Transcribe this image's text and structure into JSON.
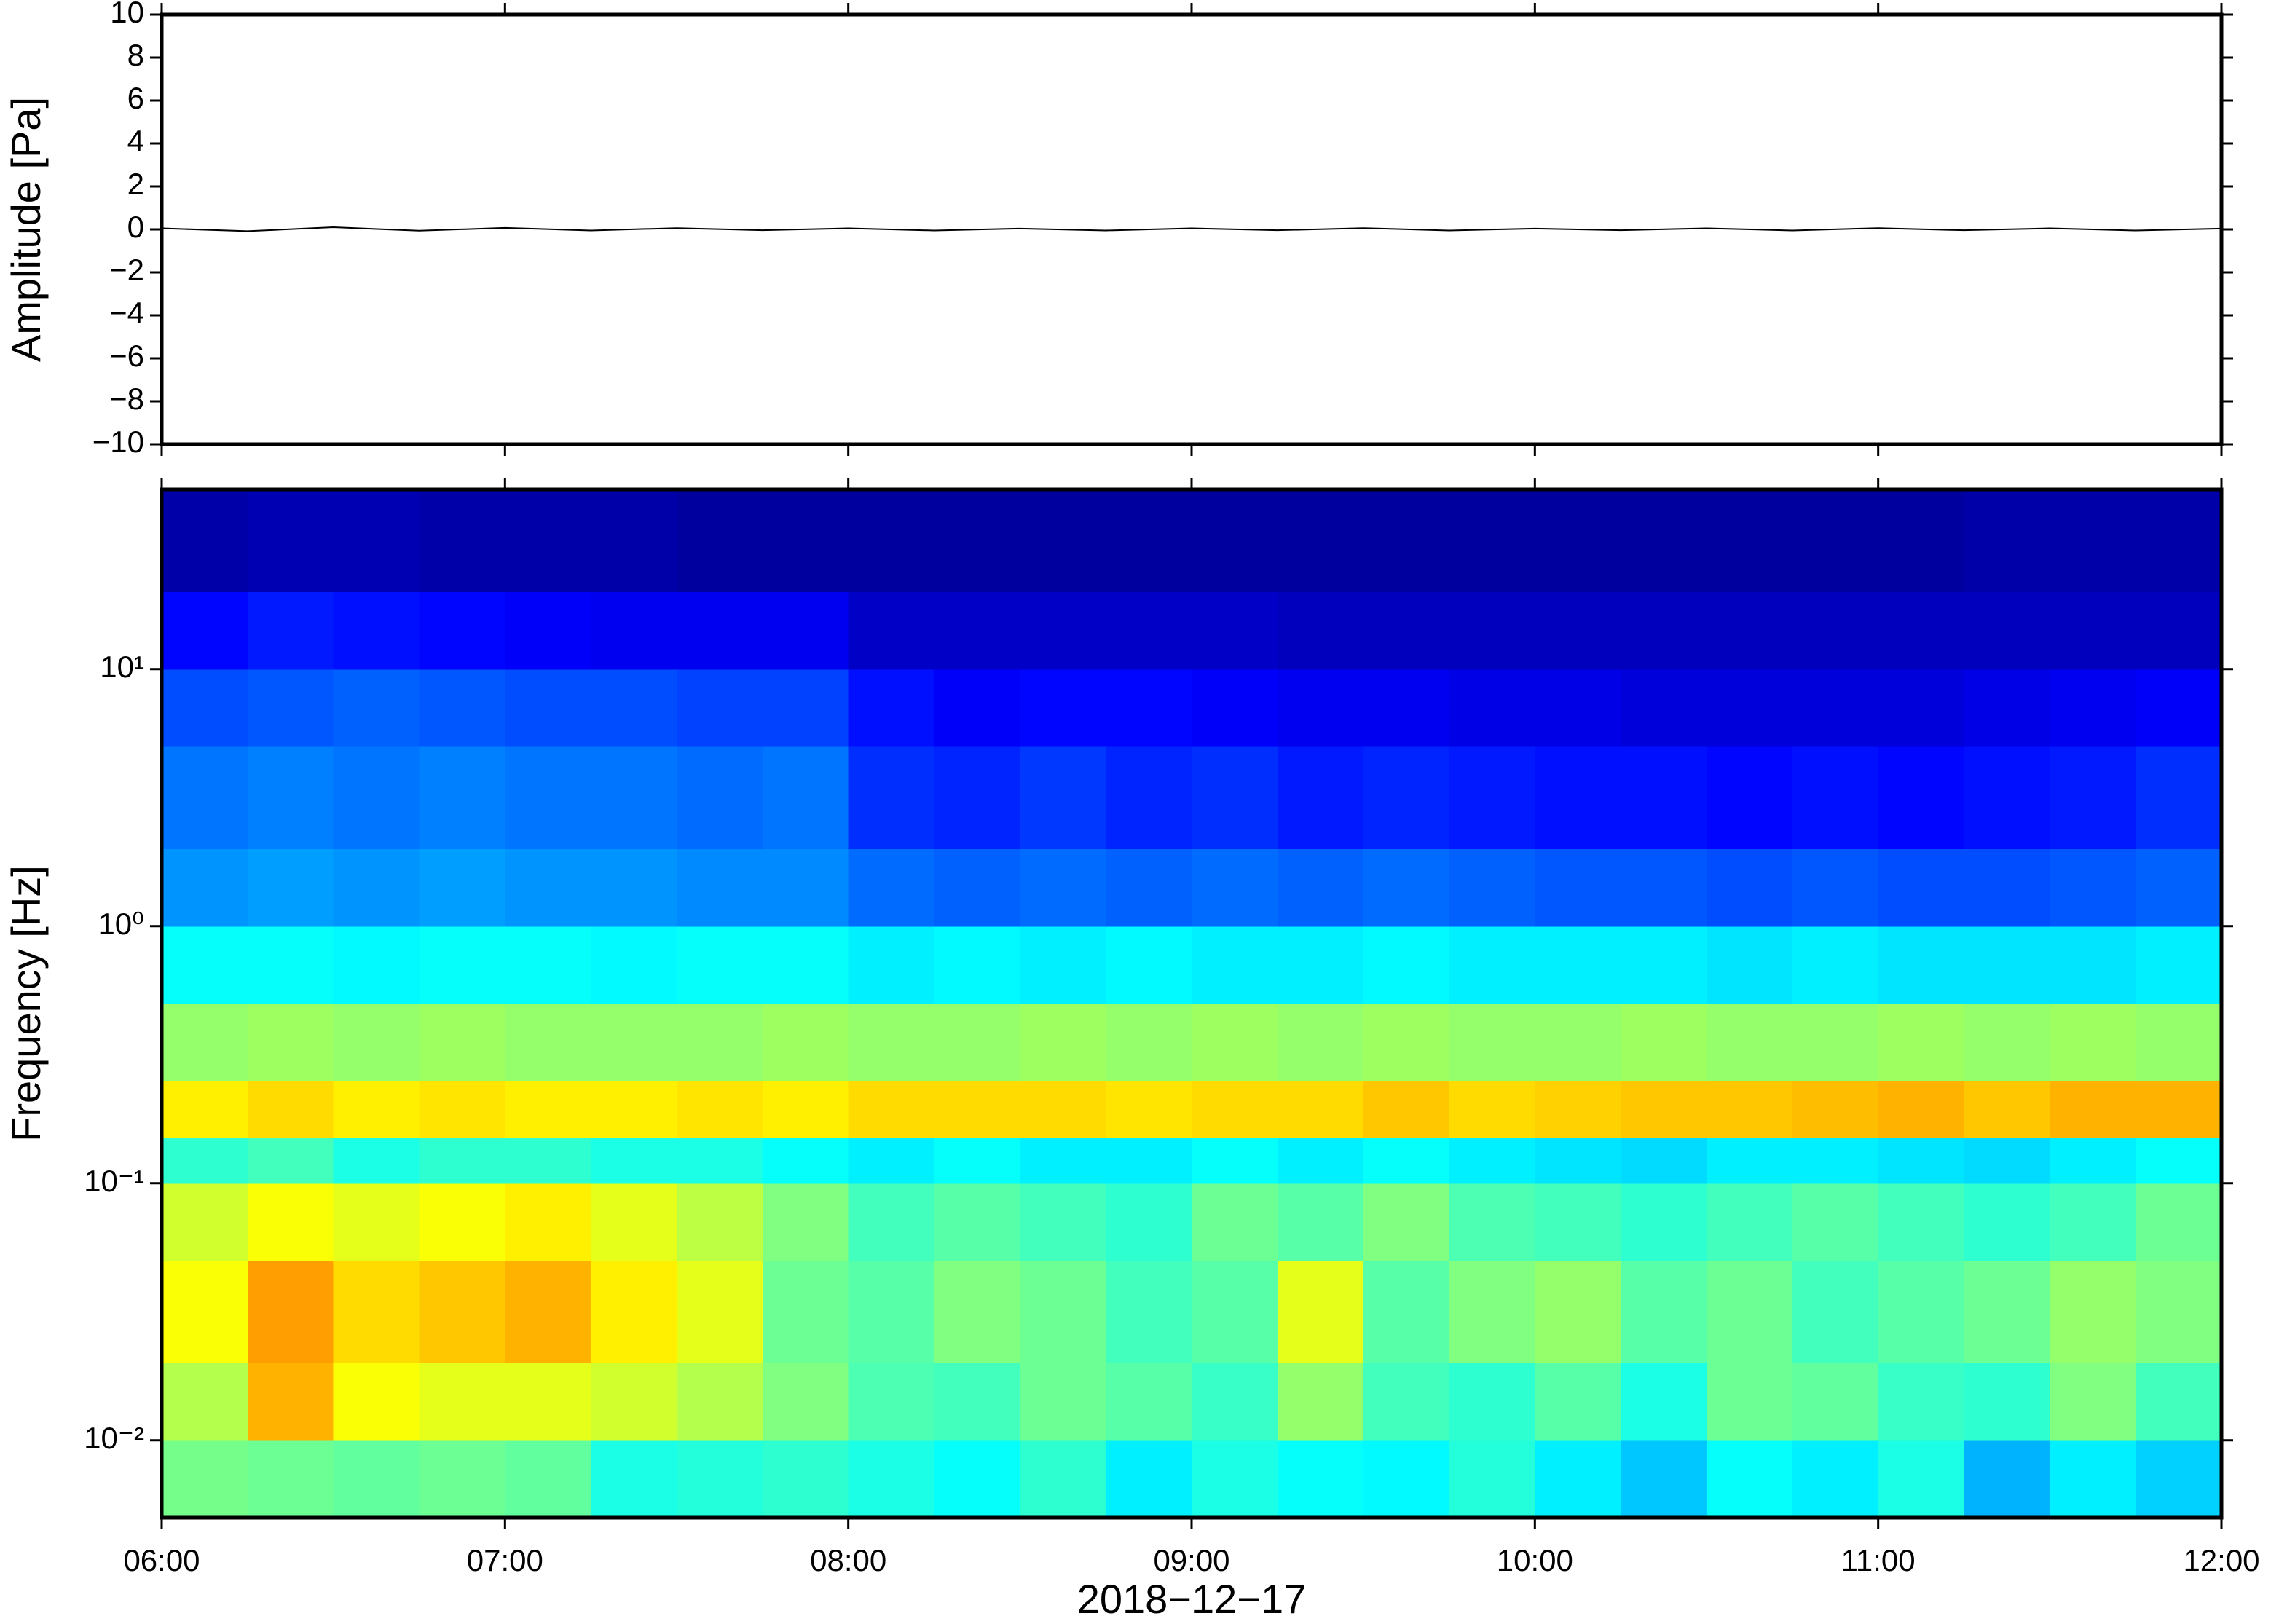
{
  "chart_data": [
    {
      "type": "line",
      "ylabel": "Amplitude [Pa]",
      "color": "#000000",
      "xlim": [
        6,
        12
      ],
      "xticks": [
        6,
        7,
        8,
        9,
        10,
        11,
        12
      ],
      "ylim": [
        -10,
        10
      ],
      "yticks": [
        {
          "value": -10,
          "label": "−10"
        },
        {
          "value": -8,
          "label": "−8"
        },
        {
          "value": -6,
          "label": "−6"
        },
        {
          "value": -4,
          "label": "−4"
        },
        {
          "value": -2,
          "label": "−2"
        },
        0,
        2,
        4,
        6,
        8,
        10
      ],
      "x": [
        6,
        6.25,
        6.5,
        6.75,
        7,
        7.25,
        7.5,
        7.75,
        8,
        8.25,
        8.5,
        8.75,
        9,
        9.25,
        9.5,
        9.75,
        10,
        10.25,
        10.5,
        10.75,
        11,
        11.25,
        11.5,
        11.75,
        12
      ],
      "values": [
        0.05,
        -0.08,
        0.1,
        -0.06,
        0.07,
        -0.05,
        0.06,
        -0.04,
        0.05,
        -0.05,
        0.04,
        -0.05,
        0.05,
        -0.04,
        0.06,
        -0.05,
        0.04,
        -0.04,
        0.05,
        -0.05,
        0.06,
        -0.04,
        0.05,
        -0.05,
        0.04
      ]
    },
    {
      "type": "heatmap",
      "ylabel": "Frequency [Hz]",
      "xlabel": "2018−12−17",
      "xlim": [
        6,
        12
      ],
      "xticks": [
        {
          "value": 6,
          "label": "06:00"
        },
        {
          "value": 7,
          "label": "07:00"
        },
        {
          "value": 8,
          "label": "08:00"
        },
        {
          "value": 9,
          "label": "09:00"
        },
        {
          "value": 10,
          "label": "10:00"
        },
        {
          "value": 11,
          "label": "11:00"
        },
        {
          "value": 12,
          "label": "12:00"
        }
      ],
      "ylim": [
        0.005,
        50
      ],
      "log_y": true,
      "yticks": [
        {
          "value": 0.01,
          "label": "10⁻²"
        },
        {
          "value": 0.1,
          "label": "10⁻¹"
        },
        {
          "value": 1,
          "label": "10⁰"
        },
        {
          "value": 10,
          "label": "10¹"
        }
      ],
      "colormap": "jet",
      "zlim": [
        0,
        100
      ],
      "x_edges": [
        6,
        6.25,
        6.5,
        6.75,
        7,
        7.25,
        7.5,
        7.75,
        8,
        8.25,
        8.5,
        8.75,
        9,
        9.25,
        9.5,
        9.75,
        10,
        10.25,
        10.5,
        10.75,
        11,
        11.25,
        11.5,
        11.75,
        12
      ],
      "y_edges": [
        0.005,
        0.01,
        0.02,
        0.05,
        0.1,
        0.15,
        0.25,
        0.5,
        1,
        2,
        5,
        10,
        20,
        50
      ],
      "z": [
        [
          49,
          48,
          47,
          48,
          47,
          40,
          41,
          42,
          40,
          38,
          42,
          36,
          40,
          38,
          37,
          41,
          36,
          32,
          38,
          36,
          40,
          30,
          36,
          33
        ],
        [
          55,
          70,
          62,
          60,
          60,
          58,
          55,
          50,
          45,
          44,
          48,
          46,
          43,
          52,
          44,
          42,
          46,
          40,
          48,
          47,
          43,
          42,
          50,
          44
        ],
        [
          62,
          72,
          66,
          68,
          70,
          64,
          60,
          48,
          46,
          50,
          48,
          44,
          46,
          60,
          46,
          50,
          52,
          46,
          48,
          44,
          46,
          48,
          52,
          50
        ],
        [
          58,
          62,
          60,
          62,
          64,
          60,
          56,
          50,
          44,
          46,
          44,
          42,
          48,
          46,
          50,
          45,
          44,
          42,
          44,
          46,
          44,
          42,
          44,
          48
        ],
        [
          42,
          44,
          40,
          42,
          42,
          40,
          40,
          38,
          36,
          38,
          36,
          36,
          38,
          36,
          38,
          36,
          35,
          34,
          36,
          36,
          35,
          34,
          36,
          38
        ],
        [
          64,
          66,
          64,
          65,
          64,
          64,
          65,
          64,
          66,
          66,
          66,
          65,
          66,
          66,
          68,
          66,
          67,
          68,
          68,
          69,
          70,
          68,
          70,
          70
        ],
        [
          52,
          53,
          52,
          53,
          52,
          52,
          52,
          53,
          52,
          52,
          53,
          52,
          53,
          52,
          53,
          52,
          52,
          53,
          52,
          52,
          53,
          52,
          53,
          52
        ],
        [
          38,
          38,
          37,
          38,
          38,
          37,
          38,
          38,
          36,
          37,
          36,
          37,
          36,
          36,
          37,
          36,
          36,
          36,
          35,
          36,
          35,
          35,
          35,
          36
        ],
        [
          27,
          28,
          27,
          28,
          27,
          27,
          26,
          26,
          23,
          22,
          23,
          22,
          23,
          22,
          23,
          22,
          21,
          21,
          20,
          21,
          20,
          20,
          21,
          22
        ],
        [
          24,
          25,
          24,
          25,
          24,
          24,
          23,
          24,
          17,
          16,
          18,
          16,
          17,
          15,
          16,
          15,
          14,
          14,
          13,
          14,
          13,
          14,
          15,
          17
        ],
        [
          20,
          21,
          22,
          21,
          20,
          20,
          19,
          19,
          14,
          12,
          13,
          13,
          12,
          11,
          11,
          10,
          10,
          9,
          9,
          9,
          9,
          10,
          11,
          12
        ],
        [
          13,
          15,
          14,
          13,
          12,
          11,
          11,
          11,
          7,
          7,
          7,
          7,
          7,
          6,
          6,
          6,
          6,
          6,
          6,
          6,
          6,
          6,
          6,
          6
        ],
        [
          4,
          5,
          5,
          4,
          4,
          4,
          3,
          3,
          3,
          3,
          3,
          3,
          3,
          3,
          3,
          3,
          3,
          3,
          3,
          3,
          3,
          4,
          4,
          4
        ]
      ]
    }
  ]
}
